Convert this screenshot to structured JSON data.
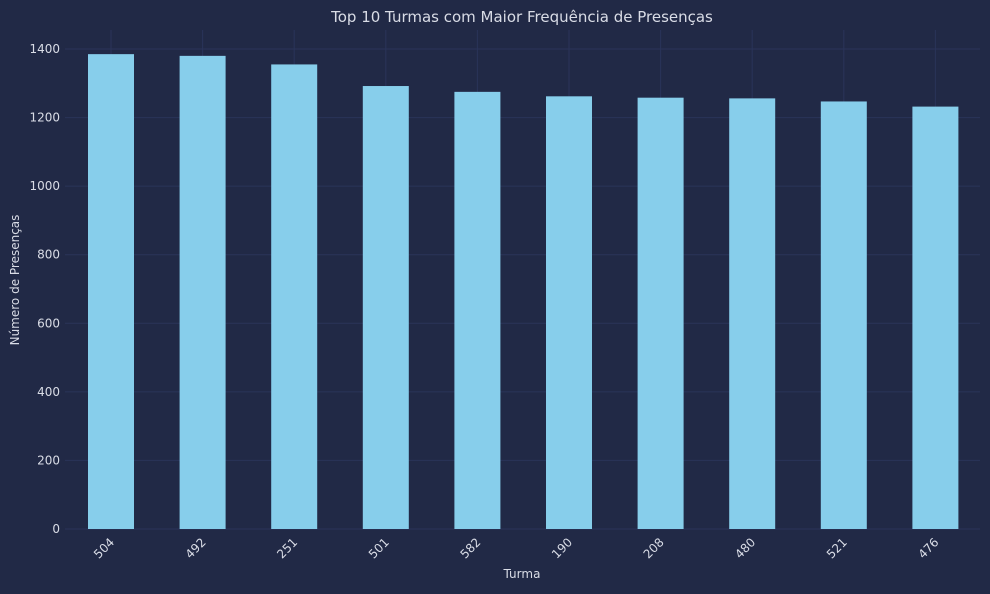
{
  "colors": {
    "background": "#212946",
    "bar": "#87CEEB",
    "grid": "#2A3459",
    "text": "#D9DCE6"
  },
  "chart_data": {
    "type": "bar",
    "title": "Top 10 Turmas com Maior Frequência de Presenças",
    "xlabel": "Turma",
    "ylabel": "Número de Presenças",
    "categories": [
      "504",
      "492",
      "251",
      "501",
      "582",
      "190",
      "208",
      "480",
      "521",
      "476"
    ],
    "values": [
      1385,
      1380,
      1355,
      1292,
      1275,
      1262,
      1258,
      1256,
      1247,
      1232
    ],
    "ylim": [
      0,
      1400
    ],
    "yticks": [
      0,
      200,
      400,
      600,
      800,
      1000,
      1200,
      1400
    ],
    "grid": true,
    "legend": "none"
  }
}
